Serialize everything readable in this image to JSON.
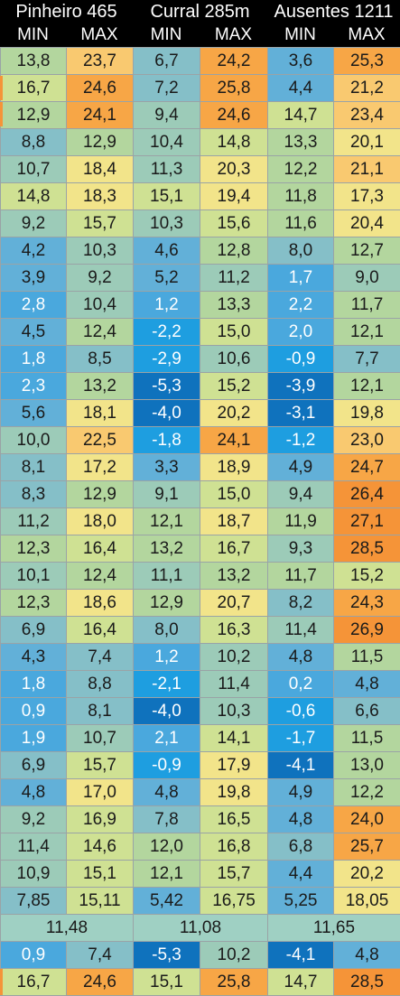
{
  "stations": [
    "Pinheiro 465",
    "Curral 285m",
    "Ausentes 1211"
  ],
  "col_labels": [
    "MIN",
    "MAX",
    "MIN",
    "MAX",
    "MIN",
    "MAX"
  ],
  "rows": [
    [
      "13,8",
      "23,7",
      "6,7",
      "24,2",
      "3,6",
      "25,3"
    ],
    [
      "16,7",
      "24,6",
      "7,2",
      "25,8",
      "4,4",
      "21,2"
    ],
    [
      "12,9",
      "24,1",
      "9,4",
      "24,6",
      "14,7",
      "23,4"
    ],
    [
      "8,8",
      "12,9",
      "10,4",
      "14,8",
      "13,3",
      "20,1"
    ],
    [
      "10,7",
      "18,4",
      "11,3",
      "20,3",
      "12,2",
      "21,1"
    ],
    [
      "14,8",
      "18,3",
      "15,1",
      "19,4",
      "11,8",
      "17,3"
    ],
    [
      "9,2",
      "15,7",
      "10,3",
      "15,6",
      "11,6",
      "20,4"
    ],
    [
      "4,2",
      "10,3",
      "4,6",
      "12,8",
      "8,0",
      "12,7"
    ],
    [
      "3,9",
      "9,2",
      "5,2",
      "11,2",
      "1,7",
      "9,0"
    ],
    [
      "2,8",
      "10,4",
      "1,2",
      "13,3",
      "2,2",
      "11,7"
    ],
    [
      "4,5",
      "12,4",
      "-2,2",
      "15,0",
      "2,0",
      "12,1"
    ],
    [
      "1,8",
      "8,5",
      "-2,9",
      "10,6",
      "-0,9",
      "7,7"
    ],
    [
      "2,3",
      "13,2",
      "-5,3",
      "15,2",
      "-3,9",
      "12,1"
    ],
    [
      "5,6",
      "18,1",
      "-4,0",
      "20,2",
      "-3,1",
      "19,8"
    ],
    [
      "10,0",
      "22,5",
      "-1,8",
      "24,1",
      "-1,2",
      "23,0"
    ],
    [
      "8,1",
      "17,2",
      "3,3",
      "18,9",
      "4,9",
      "24,7"
    ],
    [
      "8,3",
      "12,9",
      "9,1",
      "15,0",
      "9,4",
      "26,4"
    ],
    [
      "11,2",
      "18,0",
      "12,1",
      "18,7",
      "11,9",
      "27,1"
    ],
    [
      "12,3",
      "16,4",
      "13,2",
      "16,7",
      "9,3",
      "28,5"
    ],
    [
      "10,1",
      "12,4",
      "11,1",
      "13,2",
      "11,7",
      "15,2"
    ],
    [
      "12,3",
      "18,6",
      "12,9",
      "20,7",
      "8,2",
      "24,3"
    ],
    [
      "6,9",
      "16,4",
      "8,0",
      "16,3",
      "11,4",
      "26,9"
    ],
    [
      "4,3",
      "7,4",
      "1,2",
      "10,2",
      "4,8",
      "11,5"
    ],
    [
      "1,8",
      "8,8",
      "-2,1",
      "11,4",
      "0,2",
      "4,8"
    ],
    [
      "0,9",
      "8,1",
      "-4,0",
      "10,3",
      "-0,6",
      "6,6"
    ],
    [
      "1,9",
      "10,7",
      "2,1",
      "14,1",
      "-1,7",
      "11,5"
    ],
    [
      "6,9",
      "15,7",
      "-0,9",
      "17,9",
      "-4,1",
      "13,0"
    ],
    [
      "4,8",
      "17,0",
      "4,8",
      "19,8",
      "4,9",
      "12,2"
    ],
    [
      "9,2",
      "16,9",
      "7,8",
      "16,5",
      "4,8",
      "24,0"
    ],
    [
      "11,4",
      "14,6",
      "12,0",
      "16,8",
      "6,8",
      "25,7"
    ],
    [
      "10,9",
      "15,1",
      "12,1",
      "15,7",
      "4,4",
      "20,2"
    ]
  ],
  "means": [
    "7,85",
    "15,11",
    "5,42",
    "16,75",
    "5,25",
    "18,05"
  ],
  "overall": [
    "11,48",
    "11,08",
    "11,65"
  ],
  "minimums": [
    "0,9",
    "7,4",
    "-5,3",
    "10,2",
    "-4,1",
    "4,8"
  ],
  "maximums": [
    "16,7",
    "24,6",
    "15,1",
    "25,8",
    "14,7",
    "28,5"
  ],
  "palette": {
    "deep_blue": "#0f72bd",
    "blue": "#1e9ee0",
    "light_blue": "#4aa8dd",
    "steel_blue": "#62b0d8",
    "teal": "#85bfc8",
    "sea_green": "#9ccbb8",
    "green": "#b3d69e",
    "yellow_green": "#cfe193",
    "yellow": "#f2e48a",
    "light_orange": "#f9c970",
    "orange": "#f7a646",
    "dark_orange": "#f59438",
    "border": "#9aa3a6",
    "header_bg": "#000000"
  }
}
